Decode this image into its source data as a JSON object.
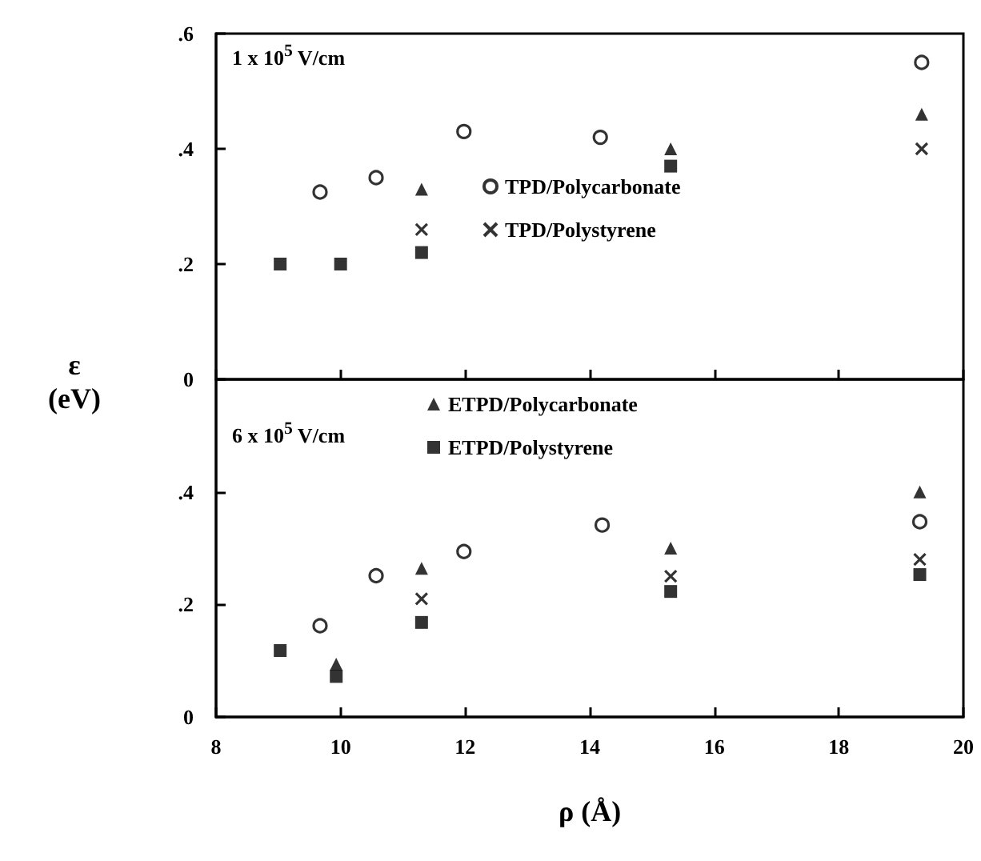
{
  "chart_data": [
    {
      "type": "scatter",
      "ylabel": "ε\n(eV)",
      "annotations": [
        "1 x 10$^{5}$ V/cm"
      ],
      "xlim": [
        8,
        20
      ],
      "xticks": [
        8,
        10,
        12,
        14,
        16,
        18,
        20
      ],
      "ylim": [
        0,
        0.6
      ],
      "yticks": [
        {
          "value": 0,
          "label": "0"
        },
        {
          "value": 0.2,
          "label": ".2"
        },
        {
          "value": 0.4,
          "label": ".4"
        },
        {
          "value": 0.6,
          "label": ".6"
        }
      ],
      "tick_labels": "y",
      "legend": "right",
      "grid": false,
      "series": [
        {
          "name": "TPD/Polycarbonate",
          "color": "#000000",
          "marker": "circle",
          "x": [
            9.67,
            10.57,
            11.98,
            14.17,
            19.33
          ],
          "values": [
            0.325,
            0.35,
            0.43,
            0.42,
            0.55
          ]
        },
        {
          "name": "TPD/Polystyrene",
          "color": "#000000",
          "marker": "cross",
          "x": [
            11.3,
            19.33
          ],
          "values": [
            0.26,
            0.4
          ]
        },
        {
          "color": "#000000",
          "marker": "triangle",
          "x": [
            11.3,
            15.3,
            19.33
          ],
          "values": [
            0.33,
            0.4,
            0.46
          ]
        },
        {
          "color": "#000000",
          "marker": "square",
          "x": [
            9.03,
            10.0,
            11.3,
            15.3
          ],
          "values": [
            0.2,
            0.2,
            0.22,
            0.37
          ]
        }
      ]
    },
    {
      "type": "scatter",
      "xlabel": "ρ (Å)",
      "annotations": [
        "6 x 10$^{5}$ V/cm"
      ],
      "xlim": [
        8,
        20
      ],
      "xticks": [
        8,
        10,
        12,
        14,
        16,
        18,
        20
      ],
      "ylim": [
        0,
        0.6
      ],
      "yticks": [
        {
          "value": 0,
          "label": "0"
        },
        {
          "value": 0.2,
          "label": ".2"
        },
        {
          "value": 0.4,
          "label": ".4"
        },
        {
          "value": 0.6,
          "label": null
        }
      ],
      "legend": "top",
      "grid": false,
      "series": [
        {
          "color": "#000000",
          "marker": "circle",
          "x": [
            9.67,
            10.57,
            11.98,
            14.2,
            19.3
          ],
          "values": [
            0.162,
            0.251,
            0.294,
            0.341,
            0.347
          ]
        },
        {
          "color": "#000000",
          "marker": "cross",
          "x": [
            11.3,
            15.3,
            19.3
          ],
          "values": [
            0.21,
            0.25,
            0.28
          ]
        },
        {
          "name": "ETPD/Polycarbonate",
          "color": "#000000",
          "marker": "triangle",
          "x": [
            9.93,
            11.3,
            15.3,
            19.3
          ],
          "values": [
            0.094,
            0.264,
            0.3,
            0.4
          ]
        },
        {
          "name": "ETPD/Polystyrene",
          "color": "#000000",
          "marker": "square",
          "x": [
            9.03,
            9.93,
            11.3,
            15.3,
            19.3
          ],
          "values": [
            0.118,
            0.072,
            0.168,
            0.223,
            0.253
          ]
        }
      ]
    }
  ]
}
